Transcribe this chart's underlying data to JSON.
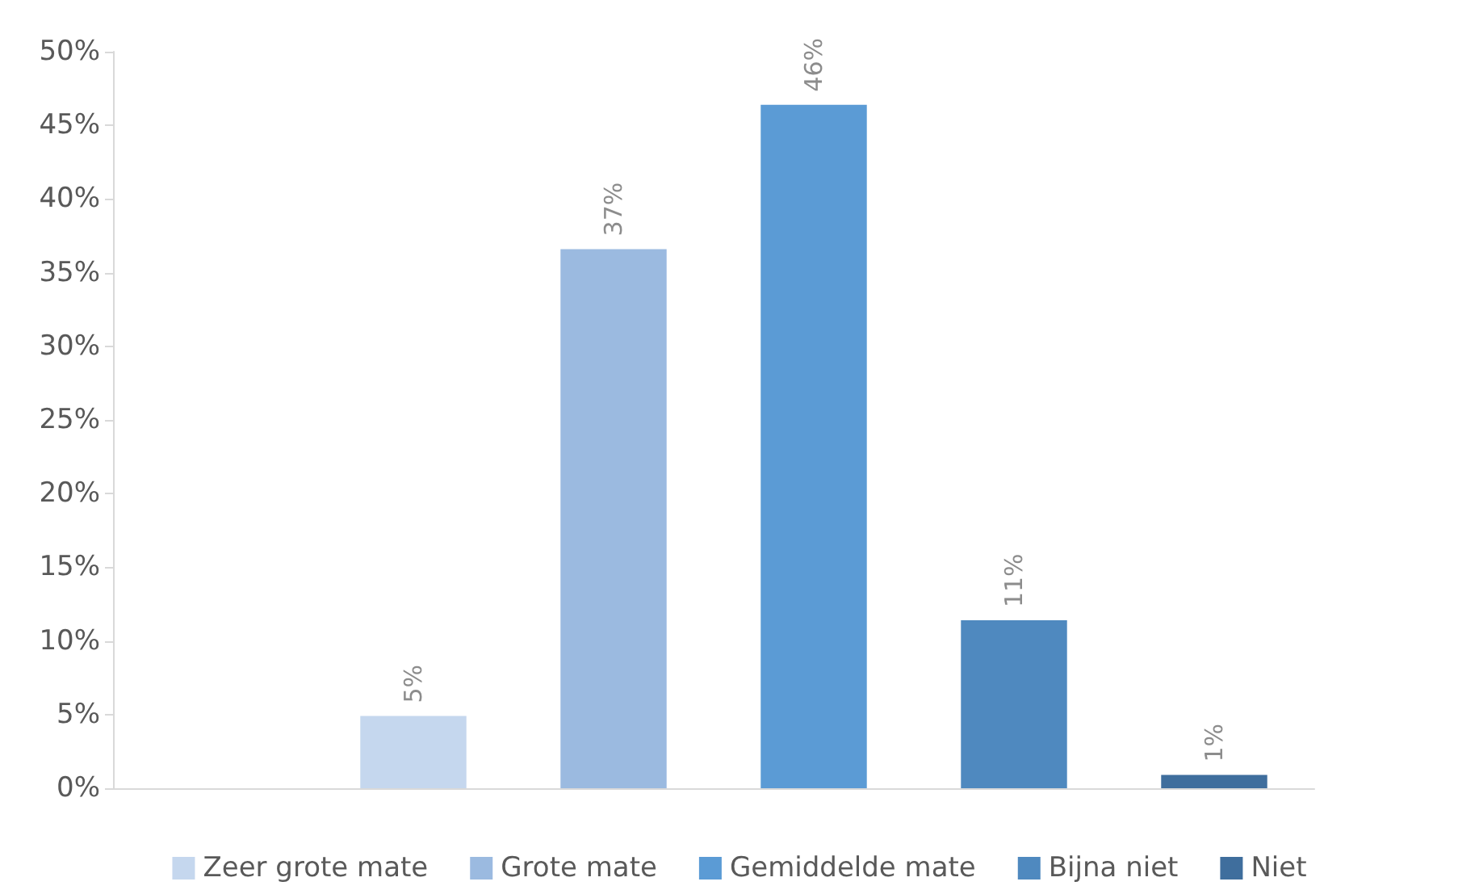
{
  "chart_data": {
    "type": "bar",
    "stacked": true,
    "categories": [
      null,
      null,
      null,
      null,
      null,
      null
    ],
    "series": [
      {
        "name": "Zeer grote mate",
        "color": "#c5d7ee",
        "values": [
          null,
          4.9,
          null,
          null,
          null,
          null
        ],
        "value_labels": [
          null,
          "5%",
          null,
          null,
          null,
          null
        ]
      },
      {
        "name": "Grote mate",
        "color": "#9bbae0",
        "values": [
          null,
          null,
          36.6,
          null,
          null,
          null
        ],
        "value_labels": [
          null,
          null,
          "37%",
          null,
          null,
          null
        ]
      },
      {
        "name": "Gemiddelde mate",
        "color": "#5b9bd5",
        "values": [
          null,
          null,
          null,
          46.4,
          null,
          null
        ],
        "value_labels": [
          null,
          null,
          null,
          "46%",
          null,
          null
        ]
      },
      {
        "name": "Bijna niet",
        "color": "#4f89bf",
        "values": [
          null,
          null,
          null,
          null,
          11.4,
          null
        ],
        "value_labels": [
          null,
          null,
          null,
          null,
          "11%",
          null
        ]
      },
      {
        "name": "Niet",
        "color": "#3f6e9d",
        "values": [
          null,
          null,
          null,
          null,
          null,
          0.9
        ],
        "value_labels": [
          null,
          null,
          null,
          null,
          null,
          "1%"
        ]
      }
    ],
    "ylim": [
      0,
      50
    ],
    "yticks": [
      {
        "value": 0,
        "label": "0%"
      },
      {
        "value": 5,
        "label": "5%"
      },
      {
        "value": 10,
        "label": "10%"
      },
      {
        "value": 15,
        "label": "15%"
      },
      {
        "value": 20,
        "label": "20%"
      },
      {
        "value": 25,
        "label": "25%"
      },
      {
        "value": 30,
        "label": "30%"
      },
      {
        "value": 35,
        "label": "35%"
      },
      {
        "value": 40,
        "label": "40%"
      },
      {
        "value": 45,
        "label": "45%"
      },
      {
        "value": 50,
        "label": "50%"
      }
    ],
    "grid": false,
    "legend": "bottom"
  }
}
